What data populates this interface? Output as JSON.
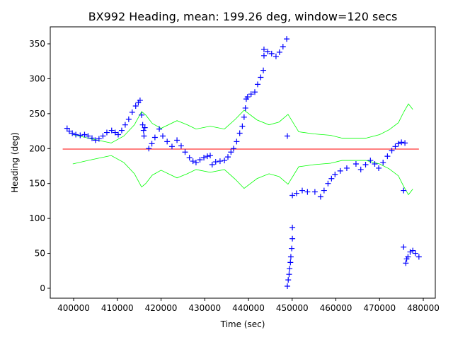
{
  "chart_data": {
    "type": "scatter",
    "title": "BX992 Heading, mean: 199.26 deg, window=120 secs",
    "xlabel": "Time (sec)",
    "ylabel": "Heading (deg)",
    "xlim": [
      394650,
      482750
    ],
    "ylim": [
      -14.2,
      374.3
    ],
    "xticks": [
      400000,
      410000,
      420000,
      430000,
      440000,
      450000,
      460000,
      470000,
      480000
    ],
    "yticks": [
      0,
      50,
      100,
      150,
      200,
      250,
      300,
      350
    ],
    "grid": false,
    "colors": {
      "points": "#0000ff",
      "mean": "#ff0000",
      "band": "#00ff00"
    },
    "mean": {
      "value": 199.26,
      "x": [
        397500,
        479000
      ]
    },
    "points": [
      [
        398500,
        229
      ],
      [
        399000,
        225
      ],
      [
        399700,
        222
      ],
      [
        400500,
        220
      ],
      [
        401500,
        219
      ],
      [
        402500,
        220
      ],
      [
        403300,
        218
      ],
      [
        404200,
        215
      ],
      [
        405000,
        212
      ],
      [
        405800,
        214
      ],
      [
        406700,
        218
      ],
      [
        407600,
        223
      ],
      [
        408700,
        226
      ],
      [
        409500,
        223
      ],
      [
        410200,
        220
      ],
      [
        411000,
        226
      ],
      [
        411800,
        234
      ],
      [
        412600,
        242
      ],
      [
        413400,
        252
      ],
      [
        414200,
        261
      ],
      [
        414800,
        266
      ],
      [
        415200,
        269
      ],
      [
        415550,
        248
      ],
      [
        415800,
        234
      ],
      [
        416000,
        226
      ],
      [
        416100,
        218
      ],
      [
        416300,
        230
      ],
      [
        417200,
        200
      ],
      [
        417900,
        207
      ],
      [
        418600,
        216
      ],
      [
        419600,
        228
      ],
      [
        420400,
        218
      ],
      [
        421400,
        210
      ],
      [
        422500,
        203
      ],
      [
        423650,
        212
      ],
      [
        424600,
        204
      ],
      [
        425500,
        195
      ],
      [
        426500,
        187
      ],
      [
        427300,
        182
      ],
      [
        428000,
        180
      ],
      [
        428900,
        184
      ],
      [
        429800,
        187
      ],
      [
        430600,
        189
      ],
      [
        431250,
        190
      ],
      [
        431700,
        177
      ],
      [
        432500,
        181
      ],
      [
        433500,
        182
      ],
      [
        434500,
        183
      ],
      [
        435300,
        188
      ],
      [
        436000,
        195
      ],
      [
        436600,
        200
      ],
      [
        437300,
        210
      ],
      [
        438000,
        222
      ],
      [
        438600,
        232
      ],
      [
        439000,
        245
      ],
      [
        439300,
        258
      ],
      [
        439500,
        271
      ],
      [
        439800,
        274
      ],
      [
        440600,
        278
      ],
      [
        441450,
        281
      ],
      [
        442100,
        292
      ],
      [
        442800,
        302
      ],
      [
        443400,
        312
      ],
      [
        443550,
        333
      ],
      [
        443550,
        342
      ],
      [
        444400,
        339
      ],
      [
        445300,
        336
      ],
      [
        446300,
        332
      ],
      [
        447100,
        338
      ],
      [
        447900,
        346
      ],
      [
        448750,
        357
      ],
      [
        448900,
        218
      ],
      [
        448900,
        3
      ],
      [
        449100,
        12
      ],
      [
        449300,
        20
      ],
      [
        449400,
        28
      ],
      [
        449600,
        37
      ],
      [
        449700,
        45
      ],
      [
        449900,
        57
      ],
      [
        450050,
        71
      ],
      [
        450050,
        87
      ],
      [
        450050,
        133
      ],
      [
        451000,
        136
      ],
      [
        452300,
        140
      ],
      [
        453500,
        138
      ],
      [
        455200,
        138
      ],
      [
        456500,
        131
      ],
      [
        457300,
        140
      ],
      [
        458200,
        150
      ],
      [
        459000,
        157
      ],
      [
        459800,
        163
      ],
      [
        461000,
        168
      ],
      [
        462500,
        172
      ],
      [
        464600,
        178
      ],
      [
        465700,
        170
      ],
      [
        466800,
        177
      ],
      [
        467900,
        183
      ],
      [
        468900,
        178
      ],
      [
        469800,
        172
      ],
      [
        470800,
        180
      ],
      [
        471800,
        189
      ],
      [
        472800,
        197
      ],
      [
        473600,
        203
      ],
      [
        474300,
        207
      ],
      [
        475000,
        209
      ],
      [
        475800,
        208
      ],
      [
        475500,
        140
      ],
      [
        475500,
        59
      ],
      [
        476000,
        36
      ],
      [
        476200,
        42
      ],
      [
        476500,
        45
      ],
      [
        477000,
        52
      ],
      [
        477600,
        54
      ],
      [
        478200,
        50
      ],
      [
        479000,
        45
      ]
    ],
    "band_upper": [
      [
        399800,
        220
      ],
      [
        404000,
        214
      ],
      [
        408600,
        208
      ],
      [
        411500,
        218
      ],
      [
        413900,
        234
      ],
      [
        415550,
        253
      ],
      [
        416500,
        248
      ],
      [
        418000,
        236
      ],
      [
        420000,
        229
      ],
      [
        423650,
        240
      ],
      [
        426000,
        234
      ],
      [
        428000,
        228
      ],
      [
        431250,
        232
      ],
      [
        434500,
        228
      ],
      [
        437000,
        242
      ],
      [
        439000,
        255
      ],
      [
        441950,
        241
      ],
      [
        444700,
        234
      ],
      [
        447000,
        238
      ],
      [
        449050,
        249
      ],
      [
        451500,
        224
      ],
      [
        455000,
        221
      ],
      [
        458800,
        219
      ],
      [
        461400,
        215
      ],
      [
        466900,
        215
      ],
      [
        470000,
        220
      ],
      [
        472200,
        227
      ],
      [
        474300,
        237
      ],
      [
        475500,
        252
      ],
      [
        476600,
        264
      ],
      [
        477600,
        256
      ]
    ],
    "band_lower": [
      [
        399800,
        178
      ],
      [
        404000,
        184
      ],
      [
        408600,
        190
      ],
      [
        411500,
        180
      ],
      [
        413900,
        164
      ],
      [
        415550,
        145
      ],
      [
        416500,
        150
      ],
      [
        418000,
        162
      ],
      [
        420000,
        169
      ],
      [
        423650,
        158
      ],
      [
        426000,
        164
      ],
      [
        428000,
        170
      ],
      [
        431250,
        166
      ],
      [
        434500,
        170
      ],
      [
        437000,
        156
      ],
      [
        439000,
        143
      ],
      [
        441950,
        157
      ],
      [
        444700,
        164
      ],
      [
        447000,
        160
      ],
      [
        449050,
        149
      ],
      [
        451500,
        174
      ],
      [
        455000,
        177
      ],
      [
        458800,
        179
      ],
      [
        461400,
        183
      ],
      [
        466900,
        183
      ],
      [
        470000,
        178
      ],
      [
        472200,
        171
      ],
      [
        474300,
        161
      ],
      [
        475500,
        146
      ],
      [
        476600,
        134
      ],
      [
        477600,
        142
      ]
    ]
  }
}
